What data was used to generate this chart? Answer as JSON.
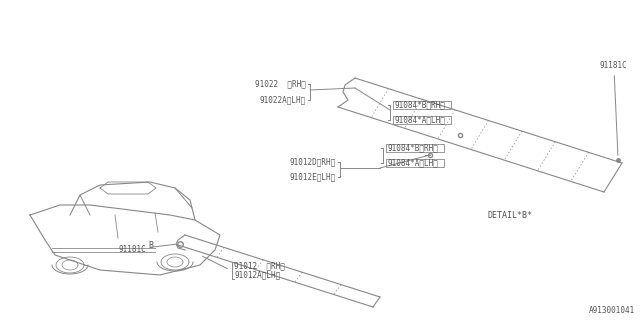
{
  "bg_color": "#ffffff",
  "line_color": "#888888",
  "text_color": "#555555",
  "title_text": "",
  "diagram_number": "A913001041",
  "detail_b_text": "DETAIL*B*",
  "labels": {
    "91022_rh": "91022  〈RH〉",
    "91022a_lh": "91022A〈LH〉",
    "91084b_rh_1": "91084*B〈RH〉",
    "91084a_lh_1": "91084*A〈LH〉",
    "91012d_rh": "91012D〈RH〉",
    "91012e_lh": "91012E〈LH〉",
    "91084b_rh_2": "91084*B〈RH〉",
    "91084a_lh_2": "91084*A〈LH〉",
    "91181c_top": "91181C",
    "91181c_bot": "91181C",
    "91012_rh": "91012  〈RH〉",
    "91012a_lh": "91012A〈LH〉",
    "b_label": "B"
  }
}
